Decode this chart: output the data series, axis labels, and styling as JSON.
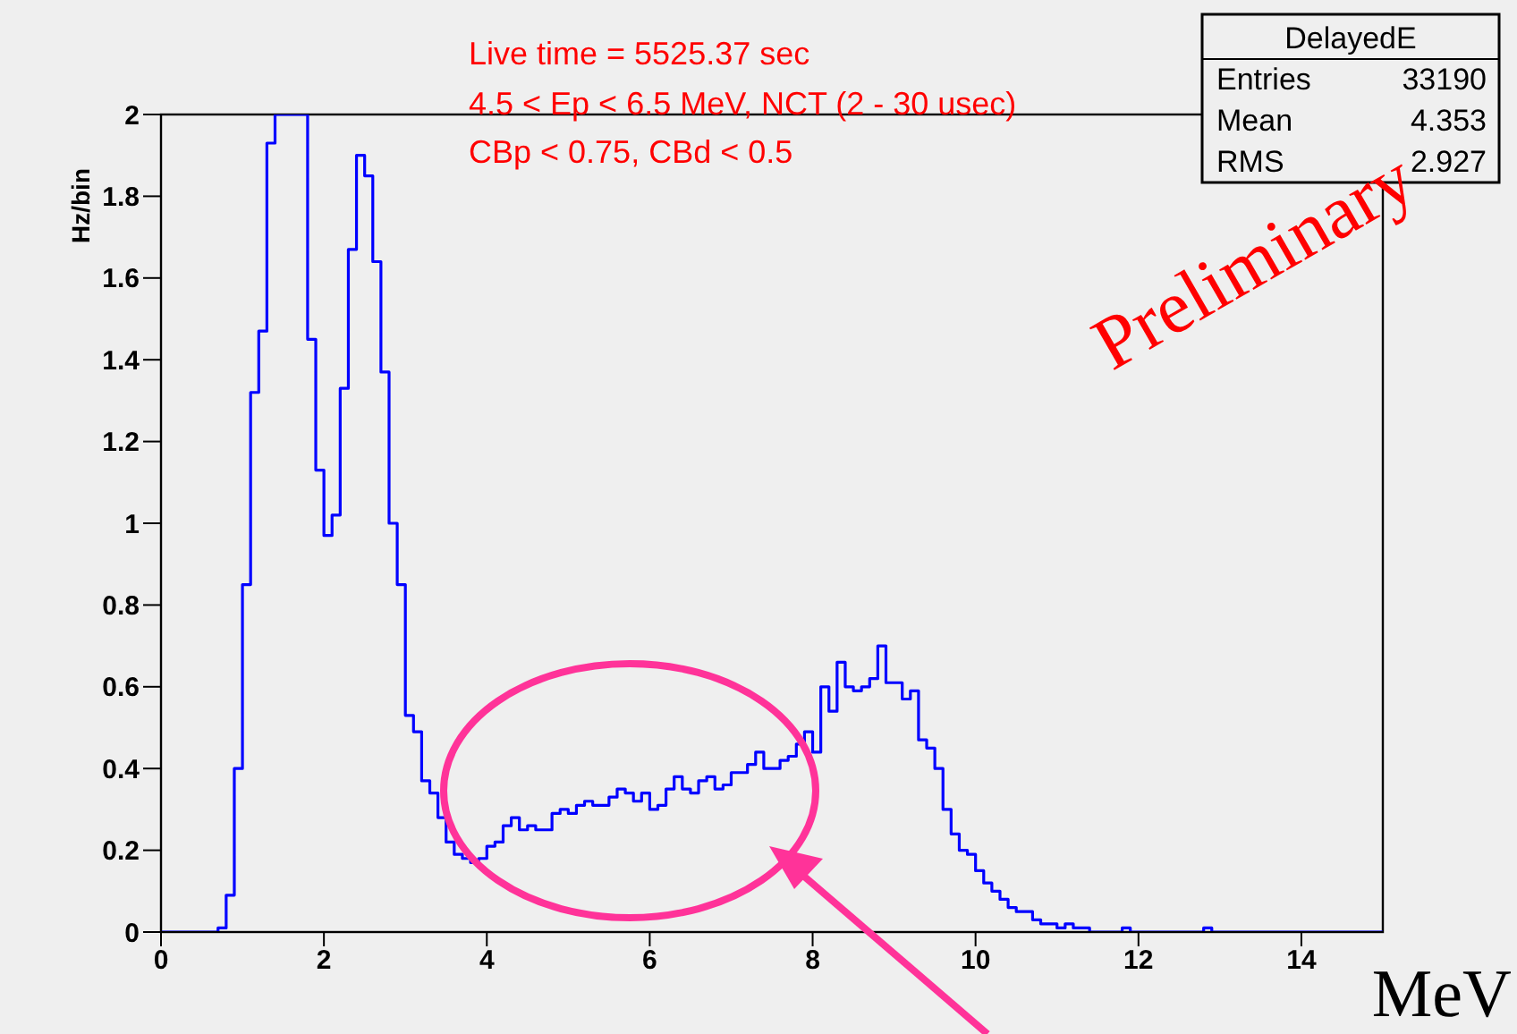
{
  "chart_data": {
    "type": "step",
    "ylabel": "Hz/bin",
    "xlabel": "MeV",
    "annotations": [
      "Live time = 5525.37 sec",
      "4.5 < Ep < 6.5 MeV, NCT (2 - 30 usec)",
      "CBp < 0.75, CBd < 0.5",
      "DelayedE",
      "Entries",
      "33190",
      "Mean",
      "4.353",
      "RMS",
      "2.927",
      "Preliminary"
    ],
    "color": "#0000ff",
    "x": [
      0,
      0.7,
      0.8,
      0.9,
      1,
      1.1,
      1.2,
      1.3,
      1.4,
      1.5,
      1.6,
      1.7,
      1.8,
      1.9,
      2,
      2.1,
      2.2,
      2.3,
      2.4,
      2.5,
      2.6,
      2.7,
      2.8,
      2.9,
      3,
      3.1,
      3.2,
      3.3,
      3.4,
      3.5,
      3.6,
      3.7,
      3.8,
      3.9,
      4,
      4.1,
      4.2,
      4.3,
      4.4,
      4.5,
      4.6,
      4.7,
      4.8,
      4.9,
      5,
      5.1,
      5.2,
      5.3,
      5.4,
      5.5,
      5.6,
      5.7,
      5.8,
      5.9,
      6,
      6.1,
      6.2,
      6.3,
      6.4,
      6.5,
      6.6,
      6.7,
      6.8,
      6.9,
      7,
      7.1,
      7.2,
      7.3,
      7.4,
      7.5,
      7.6,
      7.7,
      7.8,
      7.9,
      8,
      8.1,
      8.2,
      8.3,
      8.4,
      8.5,
      8.6,
      8.7,
      8.8,
      8.9,
      9,
      9.1,
      9.2,
      9.3,
      9.4,
      9.5,
      9.6,
      9.7,
      9.8,
      9.9,
      10,
      10.1,
      10.2,
      10.3,
      10.4,
      10.5,
      10.6,
      10.7,
      10.8,
      10.9,
      11,
      11.1,
      11.2,
      11.3,
      11.4,
      11.5,
      11.6,
      11.7,
      11.8,
      11.9,
      12,
      12.1,
      12.2,
      12.3,
      12.4,
      12.5,
      12.6,
      12.7,
      12.8,
      12.9,
      15
    ],
    "values": [
      0,
      0.01,
      0.09,
      0.4,
      0.85,
      1.32,
      1.47,
      1.93,
      2,
      2,
      2,
      2,
      1.45,
      1.13,
      0.97,
      1.02,
      1.33,
      1.67,
      1.9,
      1.85,
      1.64,
      1.37,
      1,
      0.85,
      0.53,
      0.49,
      0.37,
      0.34,
      0.28,
      0.22,
      0.19,
      0.18,
      0.17,
      0.18,
      0.21,
      0.22,
      0.26,
      0.28,
      0.25,
      0.26,
      0.25,
      0.25,
      0.29,
      0.3,
      0.29,
      0.31,
      0.32,
      0.31,
      0.31,
      0.33,
      0.35,
      0.34,
      0.32,
      0.34,
      0.3,
      0.31,
      0.35,
      0.38,
      0.35,
      0.34,
      0.37,
      0.38,
      0.35,
      0.36,
      0.39,
      0.39,
      0.41,
      0.44,
      0.4,
      0.4,
      0.42,
      0.43,
      0.46,
      0.49,
      0.44,
      0.6,
      0.54,
      0.66,
      0.6,
      0.59,
      0.6,
      0.62,
      0.7,
      0.61,
      0.61,
      0.57,
      0.59,
      0.47,
      0.45,
      0.4,
      0.3,
      0.24,
      0.2,
      0.19,
      0.15,
      0.12,
      0.1,
      0.08,
      0.06,
      0.05,
      0.05,
      0.03,
      0.02,
      0.02,
      0.01,
      0.02,
      0.01,
      0.01,
      0,
      0,
      0,
      0,
      0.01,
      0,
      0,
      0,
      0,
      0,
      0,
      0,
      0,
      0,
      0.01,
      0,
      0
    ],
    "xlim": [
      0,
      15
    ],
    "xticks": [
      0,
      2,
      4,
      6,
      8,
      10,
      12,
      14
    ],
    "ylim": [
      0,
      2
    ],
    "yticks": [
      0,
      0.2,
      0.4,
      0.6,
      0.8,
      1,
      1.2,
      1.4,
      1.6,
      1.8,
      2
    ],
    "grid": false,
    "legend": false
  }
}
